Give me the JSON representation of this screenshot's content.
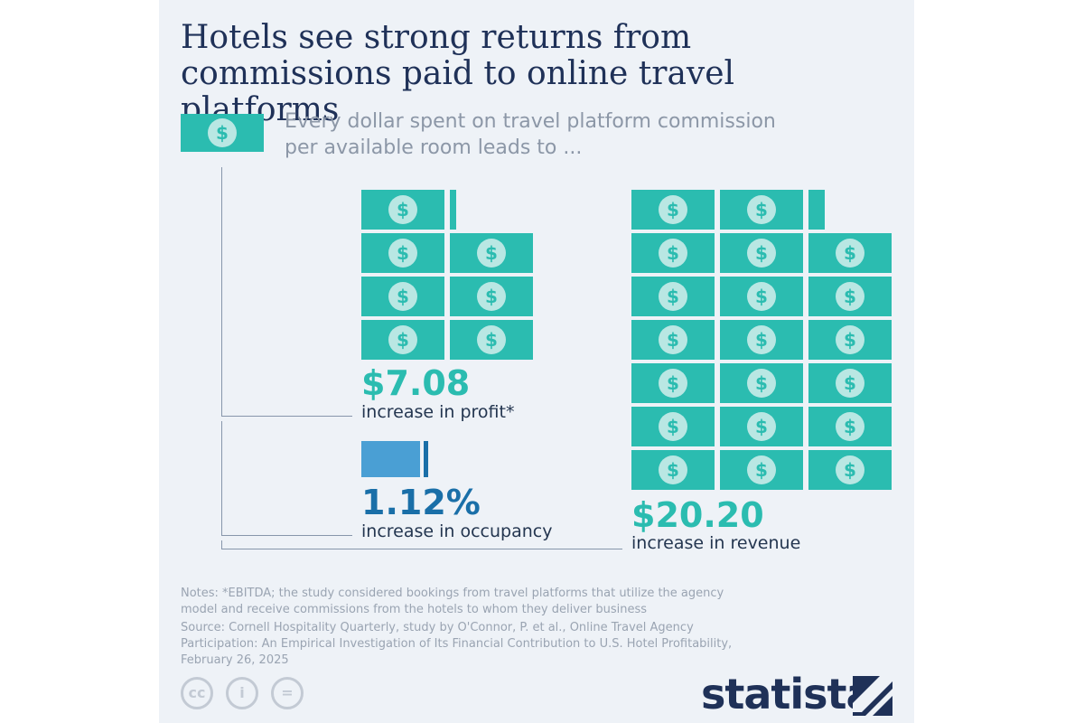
{
  "title": "Hotels see strong returns from commissions paid to online travel platforms",
  "intro": "Every dollar spent on travel platform commission per available room leads to ...",
  "chart_data": {
    "type": "pictogram",
    "unit_symbol": "$",
    "input": {
      "value": 1
    },
    "items": [
      {
        "value_label": "$7.08",
        "value": 7.08,
        "unit": "USD",
        "label": "increase in profit*",
        "color": "#2bbcb0"
      },
      {
        "value_label": "1.12%",
        "value": 1.12,
        "unit": "percent",
        "label": "increase in occupancy",
        "color": "#1a6fa8"
      },
      {
        "value_label": "$20.20",
        "value": 20.2,
        "unit": "USD",
        "label": "increase in revenue",
        "color": "#2bbcb0"
      }
    ]
  },
  "colors": {
    "bill": "#2bbcb0",
    "coin": "#b9e7e3",
    "occupancy_bar": "#4a9fd4",
    "occupancy_text": "#1a6fa8",
    "title": "#1f3158"
  },
  "notes": "Notes: *EBITDA; the study considered bookings from travel platforms that utilize the agency model and receive commissions from the hotels to whom they deliver business",
  "source": "Source: Cornell Hospitality Quarterly, study by O'Connor, P. et al., Online Travel Agency Participation: An Empirical Investigation of Its Financial Contribution to U.S. Hotel Profitability, February 26, 2025",
  "license_icons": [
    "cc-icon",
    "attribution-icon",
    "no-derivatives-icon"
  ],
  "license_glyphs": [
    "cc",
    "i",
    "="
  ],
  "brand": "statista"
}
